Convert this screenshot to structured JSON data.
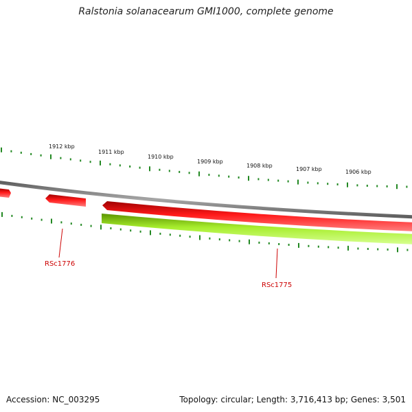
{
  "title": "Ralstonia solanacearum GMI1000, complete genome",
  "footer": {
    "accession": "Accession: NC_003295",
    "summary": "Topology: circular; Length: 3,716,413 bp; Genes: 3,501"
  },
  "colors": {
    "backbone": "#8c8c8c",
    "forward_gene": "#ee1111",
    "reverse_gene": "#99ee22",
    "tick": "#228822",
    "label_line": "#cc0000",
    "label_text": "#cc0000"
  },
  "scale": {
    "labels": [
      "1912 kbp",
      "1911 kbp",
      "1910 kbp",
      "1909 kbp",
      "1908 kbp",
      "1907 kbp",
      "1906 kbp"
    ]
  },
  "genes": [
    {
      "id": "gene-left-edge",
      "strand": "forward"
    },
    {
      "id": "gene-rsc1776",
      "strand": "forward",
      "label": "RSc1776"
    },
    {
      "id": "gene-forward-long",
      "strand": "forward"
    },
    {
      "id": "gene-rsc1775",
      "strand": "reverse",
      "label": "RSc1775"
    }
  ]
}
